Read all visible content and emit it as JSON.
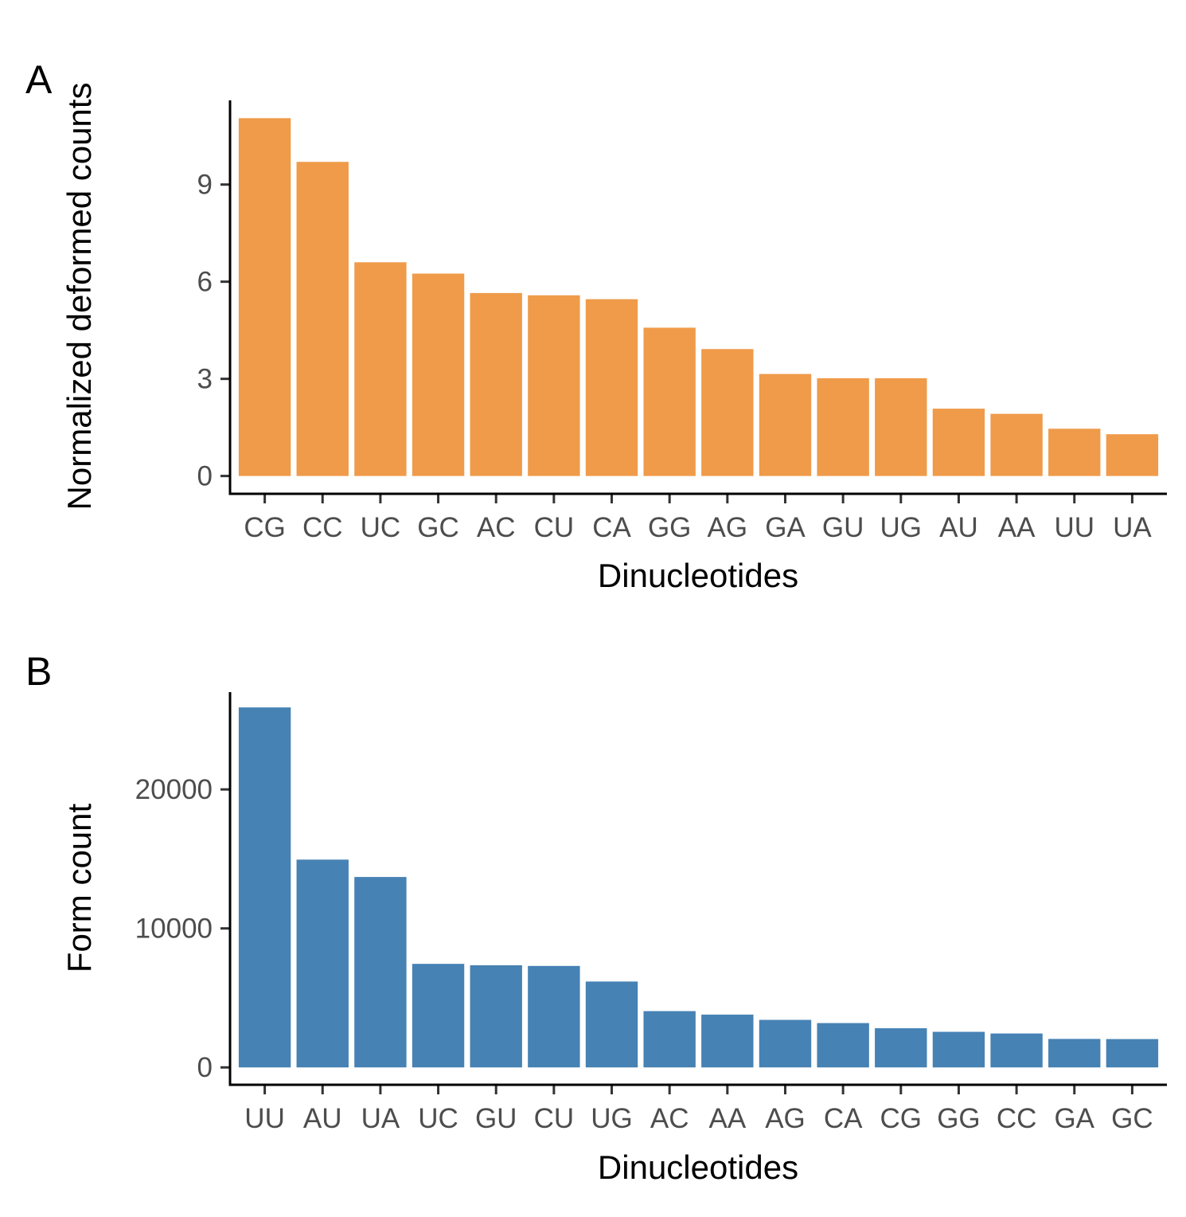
{
  "chart_data": [
    {
      "type": "bar",
      "panel_label": "A",
      "categories": [
        "CG",
        "CC",
        "UC",
        "GC",
        "AC",
        "CU",
        "CA",
        "GG",
        "AG",
        "GA",
        "GU",
        "UG",
        "AU",
        "AA",
        "UU",
        "UA"
      ],
      "values": [
        11.05,
        9.7,
        6.6,
        6.25,
        5.65,
        5.58,
        5.46,
        4.58,
        3.92,
        3.15,
        3.02,
        3.02,
        2.08,
        1.92,
        1.46,
        1.29
      ],
      "xlabel": "Dinucleotides",
      "ylabel": "Normalized deformed counts",
      "ylim": [
        -0.55,
        11.6
      ],
      "yticks": [
        0,
        3,
        6,
        9
      ],
      "color": "#EF9B4A",
      "grid": false,
      "legend": "none"
    },
    {
      "type": "bar",
      "panel_label": "B",
      "categories": [
        "UU",
        "AU",
        "UA",
        "UC",
        "GU",
        "CU",
        "UG",
        "AC",
        "AA",
        "AG",
        "CA",
        "CG",
        "GG",
        "CC",
        "GA",
        "GC"
      ],
      "values": [
        25900,
        14950,
        13700,
        7450,
        7350,
        7300,
        6180,
        4050,
        3800,
        3420,
        3190,
        2820,
        2560,
        2440,
        2050,
        2040
      ],
      "xlabel": "Dinucleotides",
      "ylabel": "Form count",
      "ylim": [
        -1250,
        27000
      ],
      "yticks": [
        0,
        10000,
        20000
      ],
      "color": "#4682B4",
      "grid": false,
      "legend": "none"
    }
  ]
}
